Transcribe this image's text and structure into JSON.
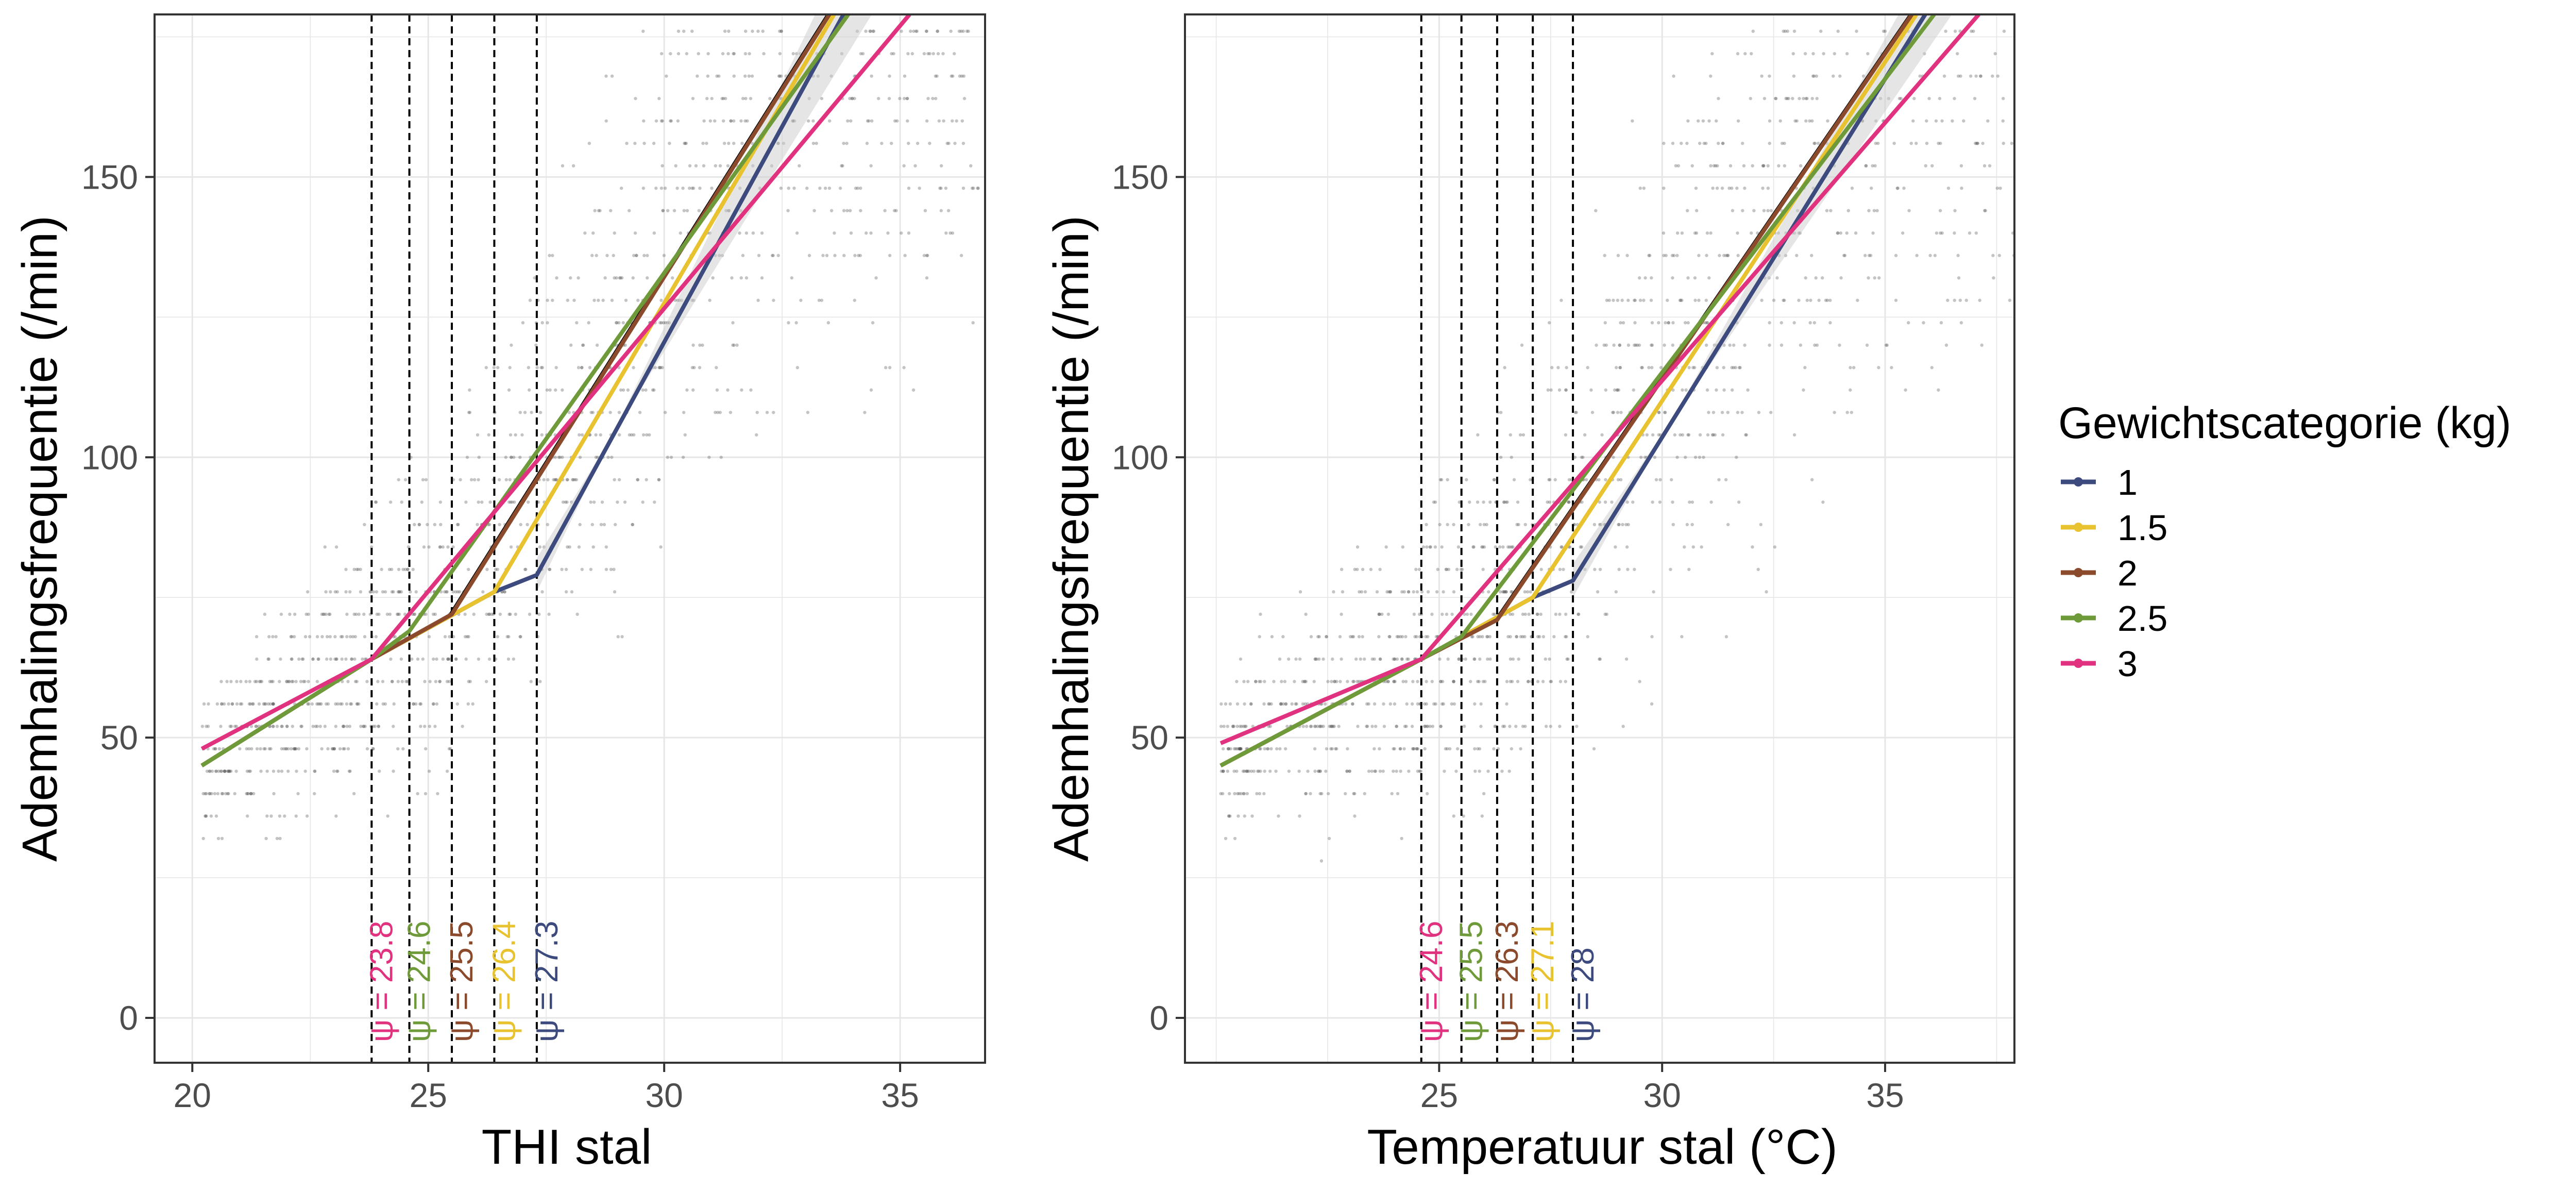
{
  "chart_data": [
    {
      "type": "line",
      "xlabel": "THI stal",
      "ylabel": "Ademhalingsfrequentie (/min)",
      "xlim": [
        19.2,
        36.8
      ],
      "ylim": [
        -8,
        179
      ],
      "xticks": [
        "20",
        "25",
        "30",
        "35"
      ],
      "yticks": [
        "0",
        "50",
        "100",
        "150"
      ],
      "grid": true,
      "breakpoints": [
        {
          "category": "3",
          "psi": 23.8,
          "label": "ψ = 23.8"
        },
        {
          "category": "2.5",
          "psi": 24.6,
          "label": "ψ = 24.6"
        },
        {
          "category": "2",
          "psi": 25.5,
          "label": "ψ = 25.5"
        },
        {
          "category": "1.5",
          "psi": 26.4,
          "label": "ψ = 26.4"
        },
        {
          "category": "1",
          "psi": 27.3,
          "label": "ψ = 27.3"
        }
      ],
      "series": [
        {
          "name": "1",
          "x": [
            20.2,
            23.8,
            26.4,
            27.3,
            33.8
          ],
          "y": [
            45,
            64,
            76,
            79,
            179
          ]
        },
        {
          "name": "1.5",
          "x": [
            20.2,
            23.8,
            26.4,
            33.6
          ],
          "y": [
            45,
            64,
            76,
            179
          ]
        },
        {
          "name": "2",
          "x": [
            20.2,
            23.8,
            25.5,
            33.5
          ],
          "y": [
            45,
            64,
            72,
            179
          ]
        },
        {
          "name": "2.5",
          "x": [
            20.2,
            23.8,
            24.6,
            33.9
          ],
          "y": [
            45,
            64,
            69,
            179
          ]
        },
        {
          "name": "3",
          "x": [
            20.2,
            23.8,
            35.2
          ],
          "y": [
            48,
            64,
            179
          ]
        }
      ]
    },
    {
      "type": "line",
      "xlabel": "Temperatuur stal (°C)",
      "ylabel": "Ademhalingsfrequentie (/min)",
      "xlim": [
        19.3,
        37.9
      ],
      "ylim": [
        -8,
        179
      ],
      "xticks": [
        "25",
        "30",
        "35"
      ],
      "yticks": [
        "0",
        "50",
        "100",
        "150"
      ],
      "grid": true,
      "breakpoints": [
        {
          "category": "3",
          "psi": 24.6,
          "label": "ψ = 24.6"
        },
        {
          "category": "2.5",
          "psi": 25.5,
          "label": "ψ = 25.5"
        },
        {
          "category": "2",
          "psi": 26.3,
          "label": "ψ = 26.3"
        },
        {
          "category": "1.5",
          "psi": 27.1,
          "label": "ψ = 27.1"
        },
        {
          "category": "1",
          "psi": 28,
          "label": "ψ = 28"
        }
      ],
      "series": [
        {
          "name": "1",
          "x": [
            20.1,
            24.6,
            27.1,
            28,
            35.9
          ],
          "y": [
            45,
            64,
            75,
            78,
            179
          ]
        },
        {
          "name": "1.5",
          "x": [
            20.1,
            24.6,
            27.1,
            35.7
          ],
          "y": [
            45,
            64,
            75,
            179
          ]
        },
        {
          "name": "2",
          "x": [
            20.1,
            24.6,
            26.3,
            35.6
          ],
          "y": [
            45,
            64,
            71,
            179
          ]
        },
        {
          "name": "2.5",
          "x": [
            20.1,
            24.6,
            25.5,
            36.1
          ],
          "y": [
            45,
            64,
            68,
            179
          ]
        },
        {
          "name": "3",
          "x": [
            20.1,
            24.6,
            37.1
          ],
          "y": [
            49,
            64,
            179
          ]
        }
      ]
    }
  ],
  "legend": {
    "title": "Gewichtscategorie (kg)",
    "position": "right",
    "items": [
      {
        "label": "1",
        "color": "#3d4a7d"
      },
      {
        "label": "1.5",
        "color": "#e8c22f"
      },
      {
        "label": "2",
        "color": "#8b4a2b"
      },
      {
        "label": "2.5",
        "color": "#6f9a3a"
      },
      {
        "label": "3",
        "color": "#e0327f"
      }
    ]
  },
  "colors": {
    "1": "#3d4a7d",
    "1.5": "#e8c22f",
    "2": "#8b4a2b",
    "2.5": "#6f9a3a",
    "3": "#e0327f",
    "grid": "#e6e6e6",
    "points": "#555555"
  }
}
